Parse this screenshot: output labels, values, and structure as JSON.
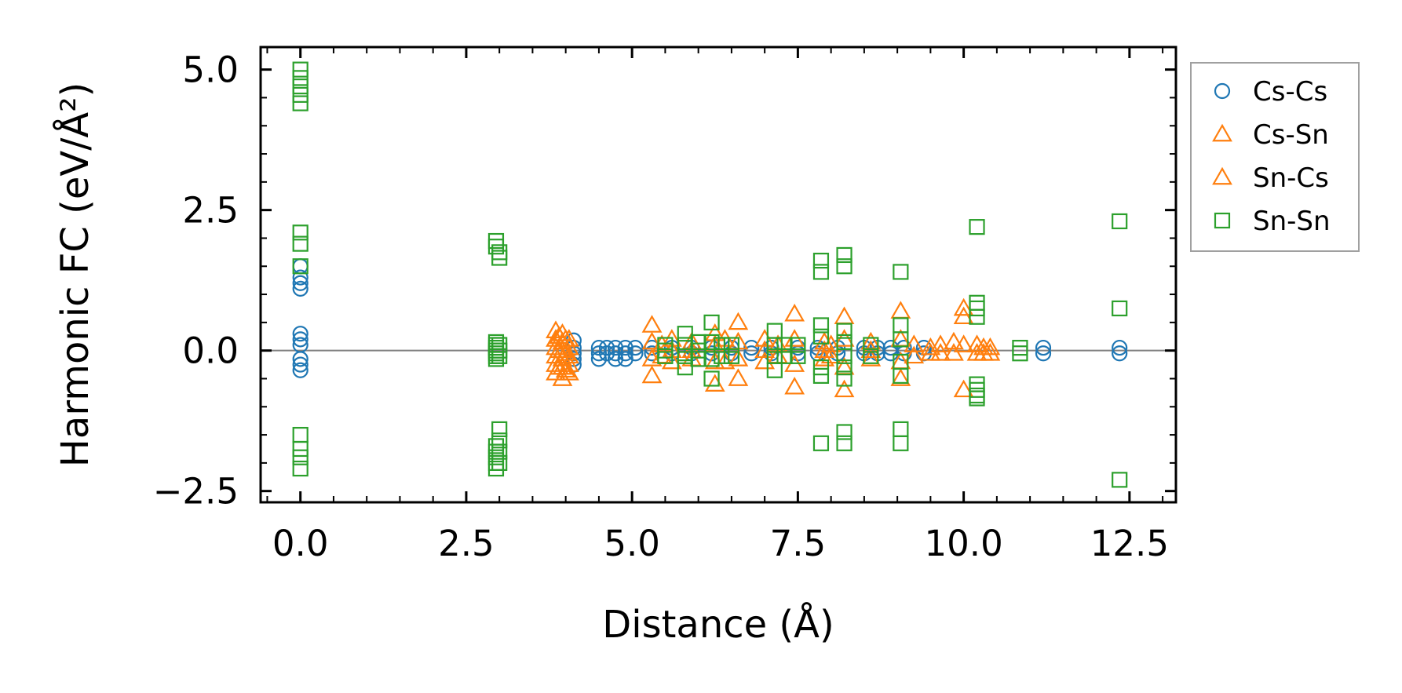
{
  "chart_data": {
    "type": "scatter",
    "xlabel": "Distance (Å)",
    "ylabel": "Harmonic FC (eV/Å²)",
    "xlim": [
      -0.6,
      13.2
    ],
    "ylim": [
      -2.7,
      5.4
    ],
    "xticks": [
      0.0,
      2.5,
      5.0,
      7.5,
      10.0,
      12.5
    ],
    "xtick_labels": [
      "0.0",
      "2.5",
      "5.0",
      "7.5",
      "10.0",
      "12.5"
    ],
    "yticks": [
      -2.5,
      0.0,
      2.5,
      5.0
    ],
    "ytick_labels": [
      "−2.5",
      "0.0",
      "2.5",
      "5.0"
    ],
    "reference_line_y": 0.0,
    "legend_position": "outside-right-top",
    "series": [
      {
        "name": "Cs-Cs",
        "marker": "circle",
        "color": "#1f77b4",
        "x": [
          0,
          0,
          0,
          0,
          0,
          0,
          0,
          0,
          0,
          0,
          4.12,
          4.12,
          4.12,
          4.12,
          4.12,
          4.5,
          4.5,
          4.5,
          4.62,
          4.62,
          4.75,
          4.75,
          4.75,
          4.9,
          4.9,
          4.9,
          5.05,
          5.05,
          5.3,
          5.3,
          5.6,
          5.6,
          5.9,
          5.9,
          6.2,
          6.2,
          6.5,
          6.5,
          6.8,
          6.8,
          7.1,
          7.1,
          7.5,
          7.5,
          7.8,
          7.8,
          8.1,
          8.1,
          8.5,
          8.5,
          8.7,
          8.7,
          8.9,
          8.9,
          9.1,
          9.1,
          9.4,
          9.4,
          11.2,
          11.2,
          12.35,
          12.35
        ],
        "y": [
          1.5,
          1.3,
          1.2,
          1.1,
          0.3,
          0.2,
          0.1,
          -0.15,
          -0.25,
          -0.35,
          0.18,
          0.05,
          -0.05,
          -0.15,
          -0.25,
          0.05,
          -0.05,
          -0.15,
          0.05,
          -0.05,
          0.05,
          -0.05,
          -0.15,
          0.05,
          -0.05,
          -0.15,
          0.05,
          -0.05,
          0.05,
          -0.05,
          0.05,
          -0.05,
          0.05,
          -0.05,
          0.05,
          -0.05,
          0.05,
          -0.05,
          0.05,
          -0.05,
          0.05,
          -0.05,
          0.05,
          -0.05,
          0.05,
          -0.05,
          0.05,
          -0.05,
          0.05,
          -0.05,
          0.05,
          -0.05,
          0.05,
          -0.05,
          0.05,
          -0.05,
          0.05,
          -0.05,
          0.05,
          -0.05,
          0.05,
          -0.05
        ]
      },
      {
        "name": "Cs-Sn",
        "marker": "triangle",
        "color": "#ff7f0e",
        "x": [
          3.85,
          3.85,
          3.85,
          3.85,
          3.85,
          3.85,
          3.95,
          3.95,
          3.95,
          3.95,
          3.95,
          3.95,
          4.05,
          4.05,
          4.05,
          4.05,
          4.05,
          5.3,
          5.3,
          5.3,
          5.3,
          5.6,
          5.6,
          5.6,
          5.9,
          5.9,
          5.9,
          6.25,
          6.25,
          6.25,
          6.25,
          6.6,
          6.6,
          6.6,
          6.6,
          7.0,
          7.0,
          7.0,
          7.45,
          7.45,
          7.45,
          7.45,
          7.9,
          7.9,
          7.9,
          8.2,
          8.2,
          8.2,
          8.2,
          8.6,
          8.6,
          8.6,
          9.05,
          9.05,
          9.05,
          9.05,
          9.5,
          9.5,
          9.85,
          9.85,
          10.0,
          10.0,
          10.0,
          10.0,
          10.2,
          10.2,
          10.4,
          10.4
        ],
        "y": [
          0.35,
          0.2,
          0.05,
          -0.1,
          -0.25,
          -0.4,
          0.3,
          0.15,
          0.0,
          -0.15,
          -0.3,
          -0.5,
          0.2,
          0.05,
          -0.1,
          -0.25,
          -0.4,
          0.45,
          0.15,
          -0.15,
          -0.45,
          0.2,
          0.0,
          -0.2,
          0.15,
          0.0,
          -0.15,
          0.3,
          0.1,
          -0.2,
          -0.6,
          0.5,
          0.15,
          -0.15,
          -0.5,
          0.2,
          0.0,
          -0.2,
          0.65,
          0.2,
          -0.25,
          -0.65,
          0.15,
          0.0,
          -0.15,
          0.6,
          0.2,
          -0.3,
          -0.7,
          0.15,
          0.0,
          -0.15,
          0.7,
          0.2,
          -0.2,
          -0.5,
          0.05,
          -0.05,
          0.15,
          -0.05,
          0.75,
          0.6,
          0.1,
          -0.7,
          0.1,
          -0.05,
          0.05,
          -0.05
        ]
      },
      {
        "name": "Sn-Cs",
        "marker": "triangle",
        "color": "#ff7f0e",
        "x": [
          3.9,
          3.9,
          3.9,
          4.0,
          4.0,
          4.0,
          5.45,
          5.45,
          6.4,
          6.4,
          7.2,
          7.2,
          8.0,
          8.0,
          9.25,
          9.25,
          9.65,
          9.65,
          10.3,
          10.3
        ],
        "y": [
          0.25,
          0.0,
          -0.3,
          0.2,
          -0.05,
          -0.35,
          0.1,
          -0.1,
          0.2,
          -0.2,
          0.1,
          -0.1,
          0.1,
          -0.1,
          0.1,
          -0.1,
          0.1,
          -0.05,
          0.05,
          -0.05
        ]
      },
      {
        "name": "Sn-Sn",
        "marker": "square",
        "color": "#2ca02c",
        "x": [
          0,
          0,
          0,
          0,
          0,
          0,
          0,
          0,
          0,
          0,
          0,
          0,
          2.95,
          2.95,
          2.95,
          2.95,
          2.95,
          2.95,
          2.95,
          2.95,
          2.95,
          2.95,
          2.95,
          2.95,
          2.95,
          2.95,
          3.0,
          3.0,
          3.0,
          3.0,
          3.0,
          3.0,
          3.0,
          3.0,
          3.0,
          5.5,
          5.5,
          5.5,
          5.8,
          5.8,
          5.8,
          5.8,
          6.0,
          6.0,
          6.0,
          6.2,
          6.2,
          6.2,
          6.2,
          6.35,
          6.35,
          6.5,
          6.5,
          7.15,
          7.15,
          7.15,
          7.15,
          7.3,
          7.3,
          7.5,
          7.5,
          7.85,
          7.85,
          7.85,
          7.85,
          7.85,
          7.85,
          7.85,
          8.2,
          8.2,
          8.2,
          8.2,
          8.2,
          8.2,
          8.2,
          8.2,
          8.2,
          8.6,
          8.6,
          9.05,
          9.05,
          9.05,
          9.05,
          9.05,
          9.05,
          9.05,
          10.2,
          10.2,
          10.2,
          10.2,
          10.2,
          10.2,
          10.2,
          10.2,
          10.85,
          10.85,
          12.35,
          12.35,
          12.35
        ],
        "y": [
          5.0,
          4.85,
          4.7,
          4.55,
          4.4,
          2.1,
          1.9,
          1.5,
          -1.5,
          -1.75,
          -1.9,
          -2.1,
          1.95,
          1.85,
          0.15,
          0.1,
          0.05,
          0.0,
          -0.05,
          -0.1,
          -0.15,
          -1.7,
          -1.8,
          -1.9,
          -2.0,
          -2.1,
          1.75,
          1.65,
          0.1,
          0.0,
          -0.1,
          -1.4,
          -1.6,
          -1.8,
          -2.0,
          0.1,
          0.0,
          -0.1,
          0.3,
          0.1,
          -0.1,
          -0.3,
          0.15,
          0.0,
          -0.15,
          0.5,
          0.15,
          -0.15,
          -0.5,
          0.1,
          -0.1,
          0.1,
          -0.1,
          0.35,
          0.1,
          -0.1,
          -0.35,
          0.1,
          -0.1,
          0.1,
          -0.1,
          1.6,
          1.4,
          0.45,
          0.25,
          -0.3,
          -0.45,
          -1.65,
          1.7,
          1.5,
          0.35,
          0.15,
          -0.1,
          -0.3,
          -0.5,
          -1.45,
          -1.65,
          0.1,
          -0.1,
          1.4,
          0.45,
          0.2,
          -0.2,
          -0.45,
          -1.4,
          -1.65,
          2.2,
          0.85,
          0.75,
          0.6,
          -0.6,
          -0.7,
          -0.8,
          -0.85,
          0.05,
          -0.05,
          2.3,
          0.75,
          -2.3
        ]
      }
    ],
    "legend": [
      "Cs-Cs",
      "Cs-Sn",
      "Sn-Cs",
      "Sn-Sn"
    ]
  }
}
